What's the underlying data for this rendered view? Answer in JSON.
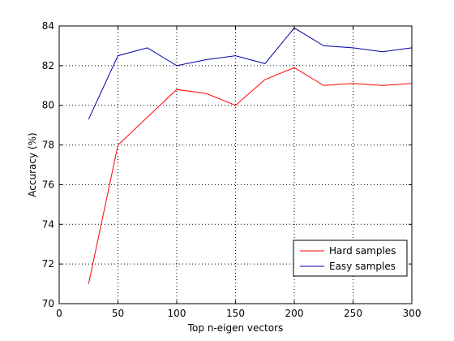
{
  "chart_data": {
    "type": "line",
    "title": "",
    "xlabel": "Top n-eigen vectors",
    "ylabel": "Accuracy (%)",
    "xlim": [
      0,
      300
    ],
    "ylim": [
      70,
      84
    ],
    "xticks": [
      0,
      50,
      100,
      150,
      200,
      250,
      300
    ],
    "yticks": [
      70,
      72,
      74,
      76,
      78,
      80,
      82,
      84
    ],
    "grid": true,
    "legend_position": "bottom-right",
    "series": [
      {
        "name": "Hard samples",
        "color": "#ff0000",
        "x": [
          25,
          50,
          75,
          100,
          125,
          150,
          175,
          200,
          225,
          250,
          275,
          300
        ],
        "y": [
          71.0,
          78.0,
          79.4,
          80.8,
          80.6,
          80.0,
          81.3,
          81.9,
          81.0,
          81.1,
          81.0,
          81.1
        ]
      },
      {
        "name": "Easy samples",
        "color": "#0000aa",
        "x": [
          25,
          50,
          75,
          100,
          125,
          150,
          175,
          200,
          225,
          250,
          275,
          300
        ],
        "y": [
          79.3,
          82.5,
          82.9,
          82.0,
          82.3,
          82.5,
          82.1,
          83.9,
          83.0,
          82.9,
          82.7,
          82.9
        ]
      }
    ]
  }
}
